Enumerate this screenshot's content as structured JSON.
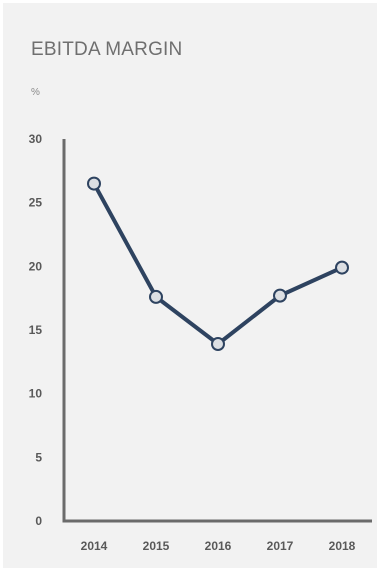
{
  "chart_data": {
    "type": "line",
    "title": "EBITDA MARGIN",
    "unit_label": "%",
    "categories": [
      "2014",
      "2015",
      "2016",
      "2017",
      "2018"
    ],
    "series": [
      {
        "values": [
          26.5,
          17.6,
          13.9,
          17.7,
          19.9
        ]
      }
    ],
    "ylim": [
      0,
      30
    ],
    "yticks": [
      0,
      5,
      10,
      15,
      20,
      25,
      30
    ],
    "grid": false,
    "legend": "none",
    "colors": {
      "line": "#2e4360",
      "marker_fill": "#dcdfe3",
      "axis": "#6b6b6b",
      "tick_text": "#595959",
      "background": "#f2f2f2"
    }
  }
}
